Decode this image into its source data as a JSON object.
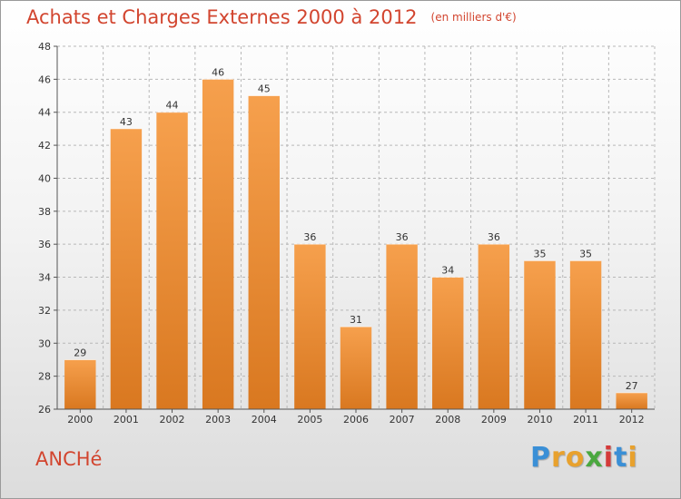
{
  "header": {
    "title": "Achats et Charges Externes 2000 à 2012",
    "subtitle": "(en milliers d'€)"
  },
  "footer": {
    "commune": "ANCHé",
    "logo": {
      "letters": [
        "P",
        "r",
        "o",
        "x",
        "i",
        "t",
        "i"
      ],
      "colors": [
        "#3a8fd6",
        "#e8a12d",
        "#e8a12d",
        "#4aa83f",
        "#d43a3a",
        "#3a8fd6",
        "#e8a12d"
      ]
    }
  },
  "colors": {
    "accent": "#d2452f",
    "bar_light": "#f6a04d",
    "bar_dark": "#d97820",
    "grid": "#b8b8b8",
    "axis": "#555555"
  },
  "chart_data": {
    "type": "bar",
    "categories": [
      "2000",
      "2001",
      "2002",
      "2003",
      "2004",
      "2005",
      "2006",
      "2007",
      "2008",
      "2009",
      "2010",
      "2011",
      "2012"
    ],
    "values": [
      29,
      43,
      44,
      46,
      45,
      36,
      31,
      36,
      34,
      36,
      35,
      35,
      27
    ],
    "title": "Achats et Charges Externes 2000 à 2012",
    "subtitle": "(en milliers d'€)",
    "xlabel": "",
    "ylabel": "",
    "ylim": [
      26,
      48
    ],
    "yticks": [
      26,
      28,
      30,
      32,
      34,
      36,
      38,
      40,
      42,
      44,
      46,
      48
    ],
    "grid": true,
    "data_labels": true
  }
}
